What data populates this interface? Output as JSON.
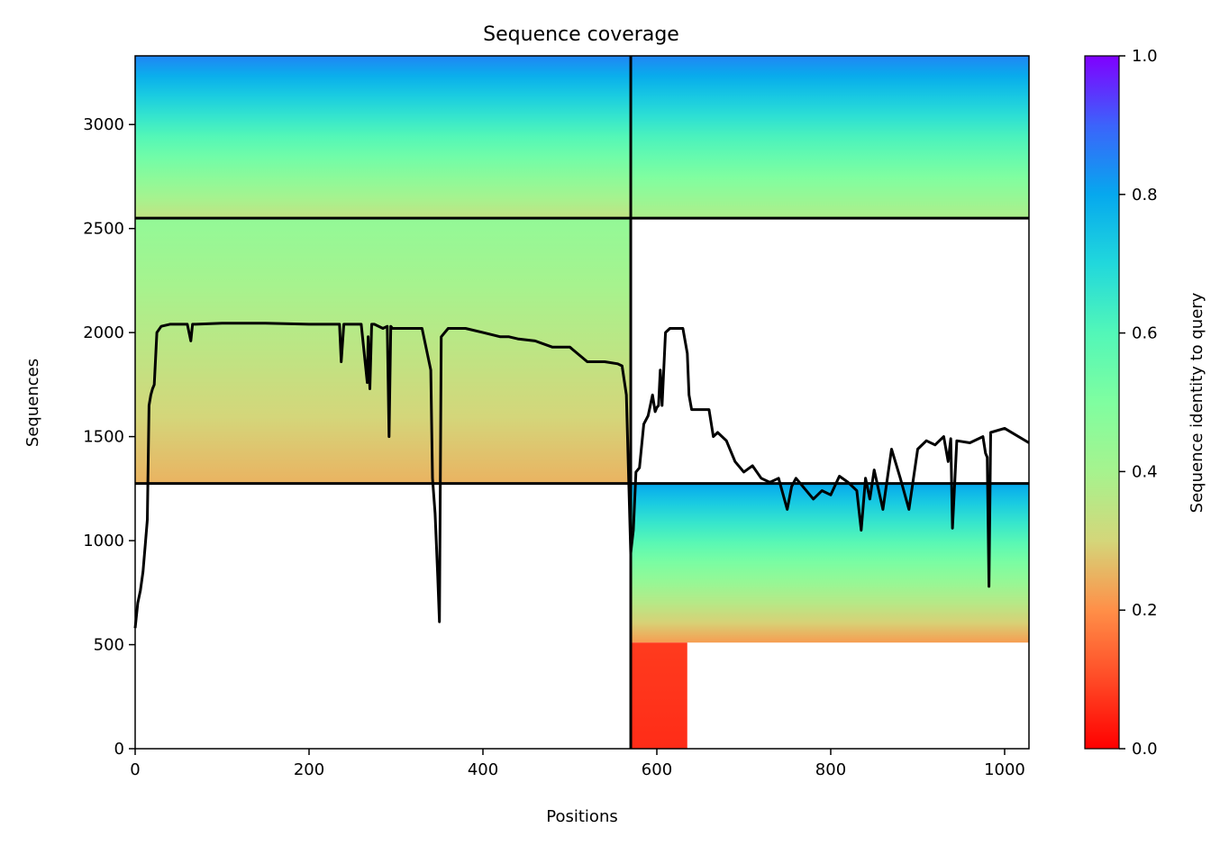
{
  "chart_data": {
    "type": "heatmap",
    "title": "Sequence coverage",
    "xlabel": "Positions",
    "ylabel": "Sequences",
    "xlim": [
      0,
      1028
    ],
    "ylim": [
      0,
      3330
    ],
    "xticks": [
      0,
      200,
      400,
      600,
      800,
      1000
    ],
    "yticks": [
      0,
      500,
      1000,
      1500,
      2000,
      2500,
      3000
    ],
    "colorbar": {
      "label": "Sequence identity to query",
      "ticks": [
        0.0,
        0.2,
        0.4,
        0.6,
        0.8,
        1.0
      ],
      "tick_labels": [
        "0.0",
        "0.2",
        "0.4",
        "0.6",
        "0.8",
        "1.0"
      ],
      "colormap": "rainbow_r",
      "range": [
        0,
        1
      ]
    },
    "dividers": {
      "vertical_x": 570,
      "horizontal_y": [
        1275,
        2550
      ]
    },
    "blocks": [
      {
        "x": [
          0,
          570
        ],
        "y": [
          2550,
          3330
        ],
        "identity_bottom": 0.34,
        "identity_top": 0.85
      },
      {
        "x": [
          0,
          570
        ],
        "y": [
          1275,
          2550
        ],
        "identity_bottom": 0.25,
        "identity_top": 0.45
      },
      {
        "x": [
          570,
          1028
        ],
        "y": [
          2550,
          3330
        ],
        "identity_bottom": 0.38,
        "identity_top": 0.85
      },
      {
        "x": [
          570,
          1028
        ],
        "y": [
          510,
          1275
        ],
        "identity_bottom": 0.22,
        "identity_top": 0.8
      },
      {
        "x": [
          570,
          635
        ],
        "y": [
          0,
          510
        ],
        "identity_bottom": 0.06,
        "identity_top": 0.08
      }
    ],
    "coverage_line": {
      "x": [
        0,
        3,
        6,
        9,
        12,
        14,
        16,
        18,
        20,
        22,
        25,
        30,
        40,
        60,
        64,
        66,
        70,
        100,
        150,
        200,
        235,
        237,
        240,
        260,
        267,
        268,
        270,
        272,
        275,
        285,
        290,
        292,
        294,
        296,
        300,
        330,
        340,
        342,
        345,
        348,
        350,
        352,
        360,
        380,
        400,
        420,
        430,
        440,
        460,
        480,
        500,
        520,
        540,
        555,
        560,
        565,
        570,
        573,
        576,
        580,
        585,
        590,
        595,
        598,
        600,
        602,
        604,
        606,
        610,
        615,
        617,
        620,
        630,
        635,
        637,
        640,
        660,
        665,
        670,
        680,
        690,
        700,
        710,
        720,
        730,
        740,
        750,
        755,
        760,
        770,
        780,
        790,
        800,
        810,
        820,
        830,
        835,
        840,
        845,
        850,
        860,
        870,
        880,
        890,
        900,
        910,
        920,
        930,
        935,
        938,
        940,
        945,
        960,
        975,
        978,
        980,
        982,
        984,
        1000,
        1028
      ],
      "y": [
        580,
        700,
        760,
        850,
        1000,
        1100,
        1650,
        1700,
        1730,
        1750,
        2000,
        2030,
        2040,
        2040,
        1960,
        2040,
        2040,
        2045,
        2045,
        2040,
        2040,
        1860,
        2040,
        2040,
        1760,
        1980,
        1730,
        2040,
        2040,
        2020,
        2030,
        1500,
        2030,
        2020,
        2020,
        2020,
        1820,
        1300,
        1130,
        830,
        610,
        1980,
        2020,
        2020,
        2000,
        1980,
        1980,
        1970,
        1960,
        1930,
        1930,
        1860,
        1860,
        1850,
        1840,
        1700,
        940,
        1050,
        1330,
        1350,
        1560,
        1600,
        1700,
        1620,
        1640,
        1650,
        1820,
        1650,
        2000,
        2020,
        2020,
        2020,
        2020,
        1900,
        1700,
        1630,
        1630,
        1500,
        1520,
        1480,
        1380,
        1330,
        1360,
        1300,
        1280,
        1300,
        1150,
        1260,
        1300,
        1250,
        1200,
        1240,
        1220,
        1310,
        1280,
        1240,
        1050,
        1300,
        1200,
        1340,
        1150,
        1440,
        1300,
        1150,
        1440,
        1480,
        1460,
        1500,
        1380,
        1490,
        1060,
        1480,
        1470,
        1500,
        1420,
        1400,
        780,
        1520,
        1540,
        1470
      ]
    }
  }
}
